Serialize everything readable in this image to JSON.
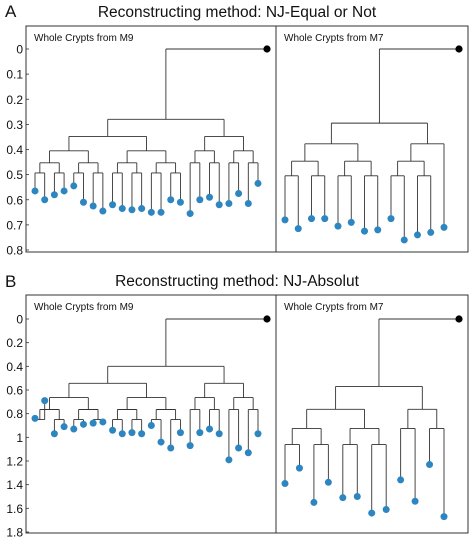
{
  "figure": {
    "panels": [
      {
        "letter": "A",
        "title": "Reconstructing method: NJ-Equal or Not"
      },
      {
        "letter": "B",
        "title": "Reconstructing method: NJ-Absolut"
      }
    ]
  },
  "chart_data": [
    {
      "type": "dendrogram",
      "title": "Reconstructing method: NJ-Equal or Not",
      "panel_label": "A",
      "ylim": [
        0,
        0.8
      ],
      "yticks": [
        "0",
        "0.1",
        "0.2",
        "0.3",
        "0.4",
        "0.5",
        "0.6",
        "0.7",
        "0.8"
      ],
      "grid": false,
      "root_color": "#000000",
      "leaf_color": "#2e86c1",
      "subplots": [
        {
          "name": "Whole Crypts from M9",
          "root": 0,
          "root_node_depth": 0.28,
          "leaf_depths": [
            0.565,
            0.6,
            0.58,
            0.565,
            0.545,
            0.61,
            0.625,
            0.645,
            0.62,
            0.635,
            0.64,
            0.635,
            0.65,
            0.65,
            0.6,
            0.61,
            0.655,
            0.6,
            0.59,
            0.62,
            0.615,
            0.575,
            0.615,
            0.535
          ]
        },
        {
          "name": "Whole Crypts from M7",
          "root": 0,
          "root_node_depth": 0.295,
          "leaf_depths": [
            0.68,
            0.715,
            0.675,
            0.675,
            0.705,
            0.69,
            0.725,
            0.72,
            0.675,
            0.76,
            0.74,
            0.73,
            0.71
          ]
        }
      ]
    },
    {
      "type": "dendrogram",
      "title": "Reconstructing method: NJ-Absolut",
      "panel_label": "B",
      "ylim": [
        0,
        1.8
      ],
      "yticks": [
        "0",
        "0.2",
        "0.4",
        "0.6",
        "0.8",
        "1",
        "1.2",
        "1.4",
        "1.6",
        "1.8"
      ],
      "grid": false,
      "root_color": "#000000",
      "leaf_color": "#2e86c1",
      "subplots": [
        {
          "name": "Whole Crypts from M9",
          "root": 0,
          "root_node_depth": 0.4,
          "leaf_depths": [
            0.84,
            0.69,
            0.97,
            0.91,
            0.93,
            0.89,
            0.88,
            0.87,
            0.94,
            0.97,
            0.96,
            0.97,
            0.9,
            1.04,
            1.09,
            0.96,
            1.07,
            0.96,
            0.93,
            0.97,
            1.19,
            1.09,
            1.13,
            0.97
          ]
        },
        {
          "name": "Whole Crypts from M7",
          "root": 0,
          "root_node_depth": 0.57,
          "leaf_depths": [
            1.39,
            1.26,
            1.55,
            1.38,
            1.51,
            1.5,
            1.64,
            1.61,
            1.36,
            1.54,
            1.23,
            1.67
          ]
        }
      ]
    }
  ]
}
